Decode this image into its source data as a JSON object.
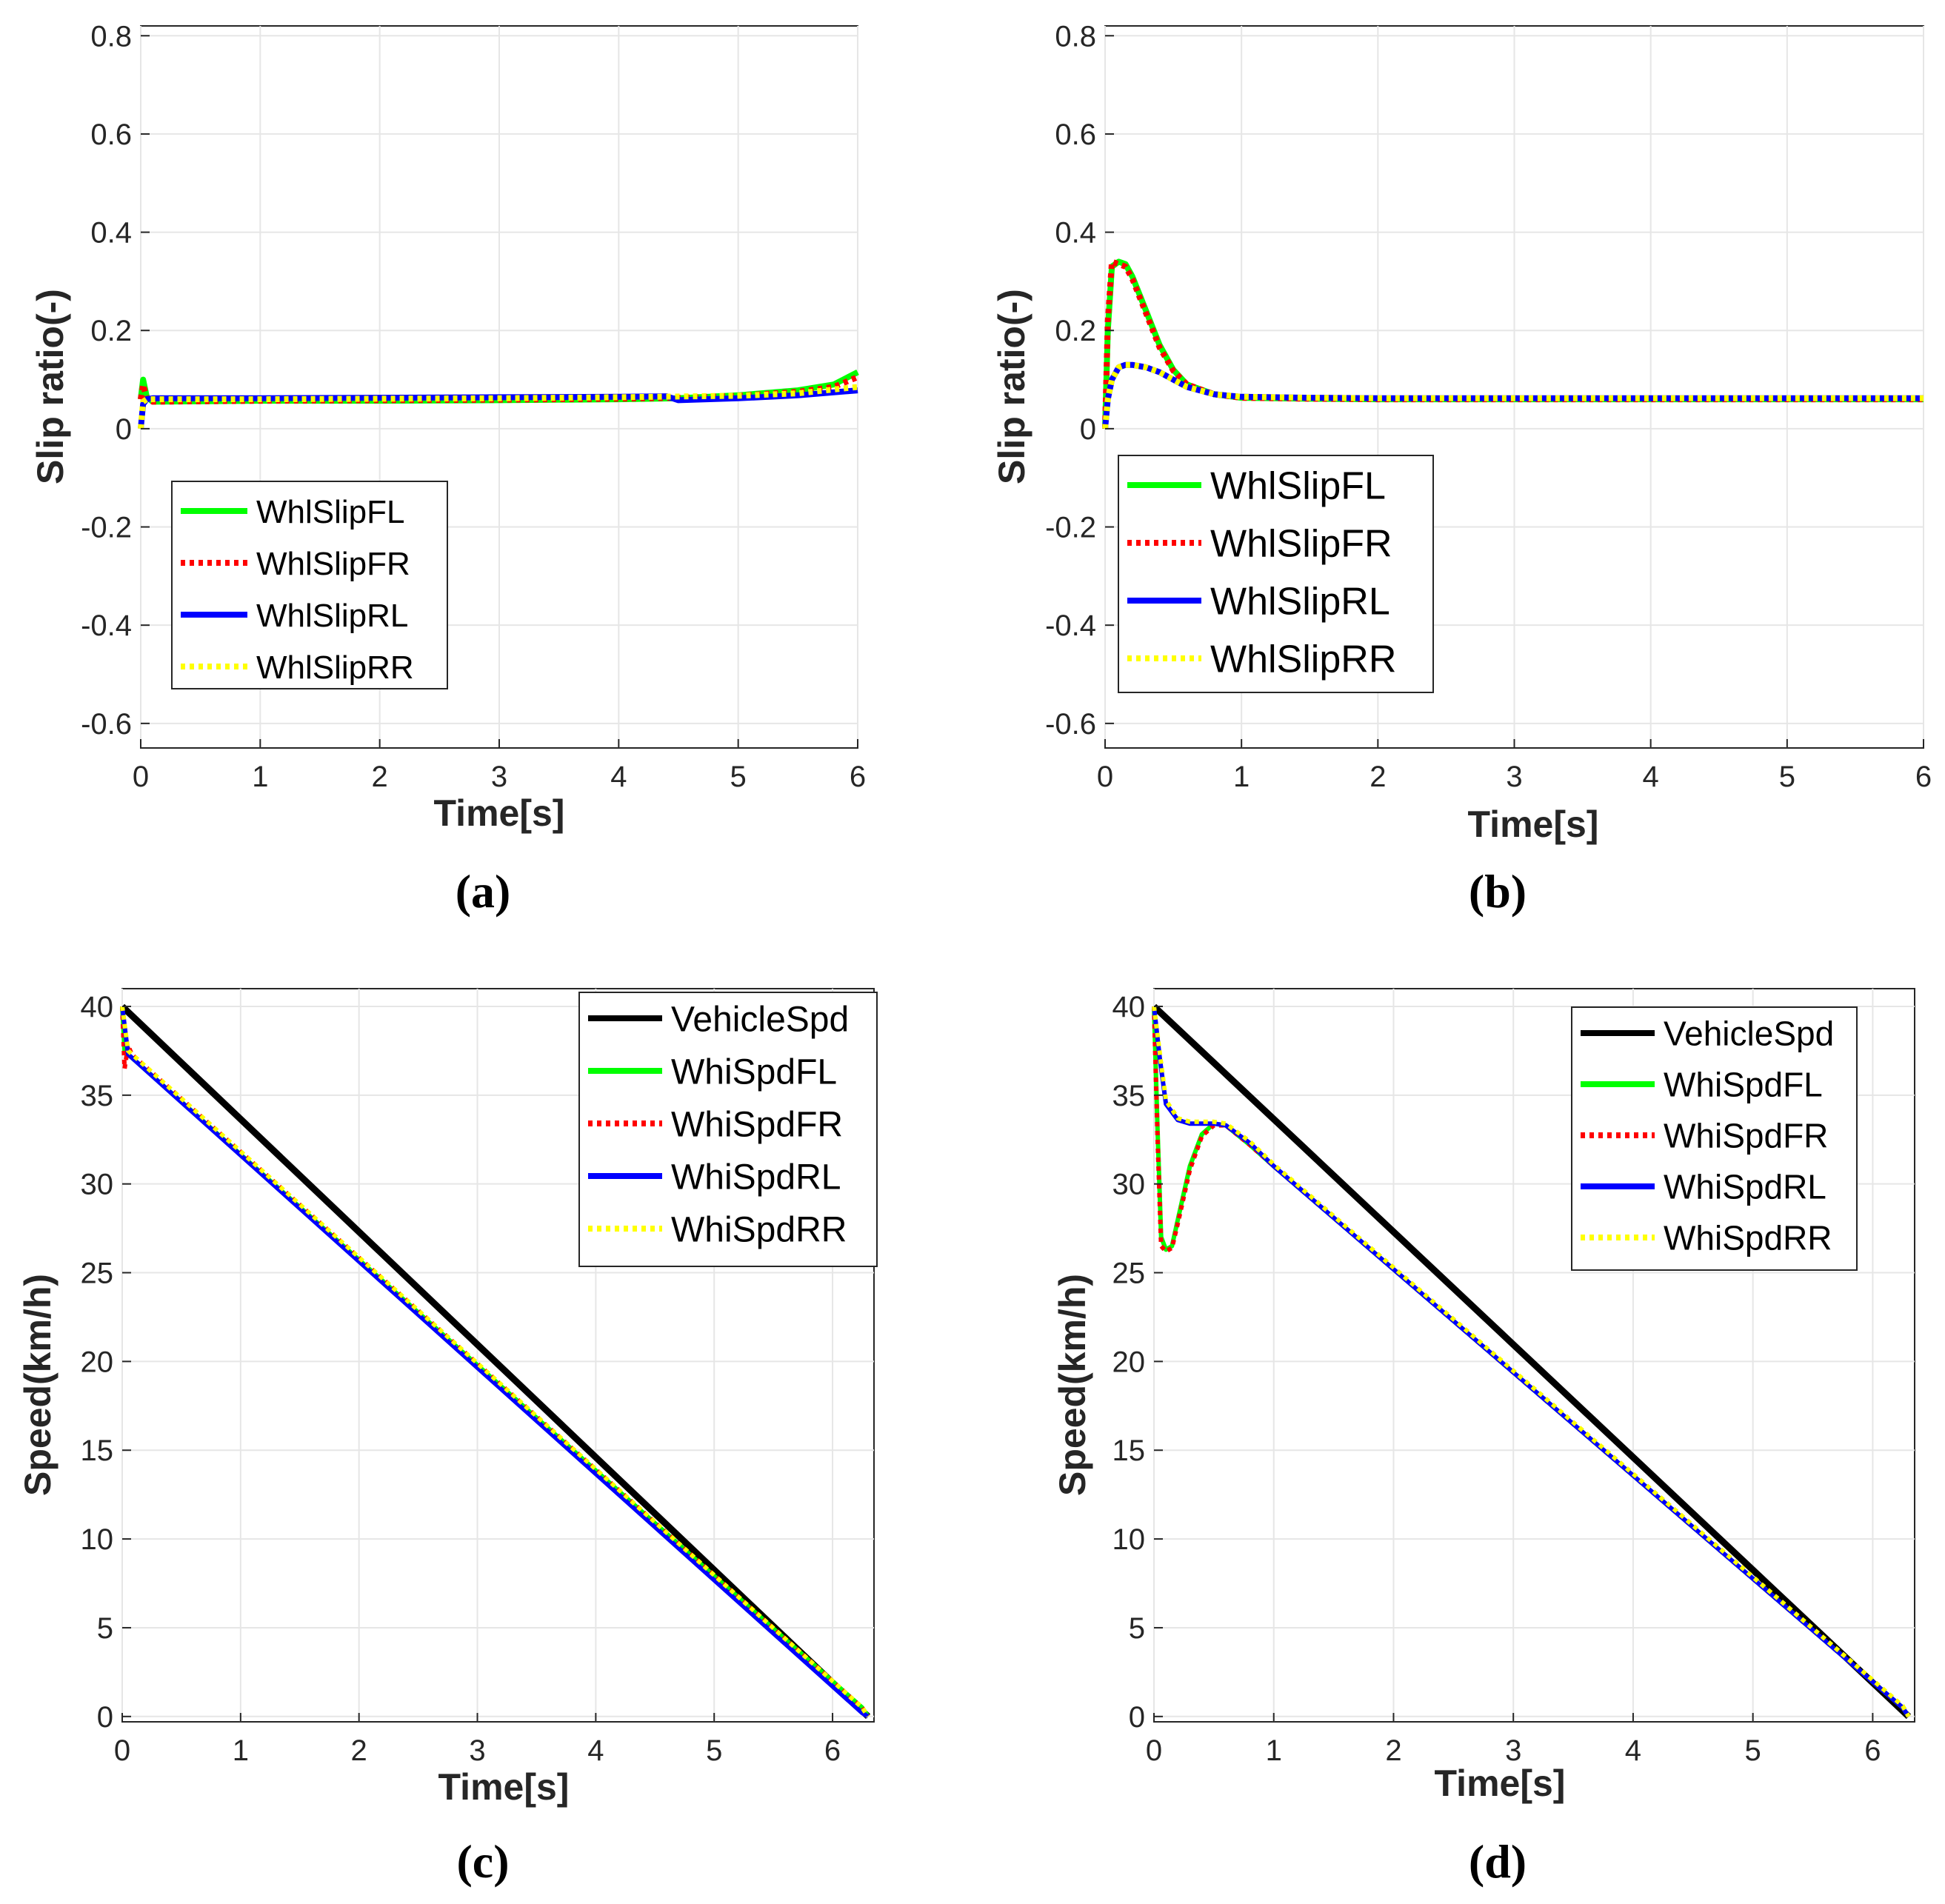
{
  "chart_data": [
    {
      "id": "a",
      "type": "line",
      "panel_label": "(a)",
      "xlabel": "Time[s]",
      "ylabel": "Slip ratio(-)",
      "xlim": [
        0,
        6
      ],
      "ylim": [
        -0.65,
        0.82
      ],
      "xticks": [
        0,
        1,
        2,
        3,
        4,
        5,
        6
      ],
      "xtick_labels": [
        "0",
        "1",
        "2",
        "3",
        "4",
        "5",
        "6"
      ],
      "yticks": [
        0.8,
        0.6,
        0.4,
        0.2,
        0,
        -0.2,
        -0.4,
        -0.6
      ],
      "ytick_labels": [
        "0.8",
        "0.6",
        "0.4",
        "0.2",
        "0",
        "-0.2",
        "-0.4",
        "-0.6"
      ],
      "grid": true,
      "legend_position": "left-middle",
      "series": [
        {
          "name": "WhlSlipFL",
          "color": "#00ff00",
          "style": "solid",
          "x": [
            0,
            0.02,
            0.05,
            0.1,
            1,
            2,
            3,
            4,
            4.5,
            5,
            5.5,
            5.8,
            6
          ],
          "y": [
            0.06,
            0.1,
            0.065,
            0.055,
            0.057,
            0.057,
            0.058,
            0.06,
            0.062,
            0.068,
            0.078,
            0.09,
            0.115
          ]
        },
        {
          "name": "WhlSlipFR",
          "color": "#ff0000",
          "style": "dotted",
          "x": [
            0,
            0.02,
            0.05,
            0.1,
            1,
            2,
            3,
            4,
            4.5,
            5,
            5.5,
            5.8,
            6
          ],
          "y": [
            0.06,
            0.09,
            0.06,
            0.055,
            0.057,
            0.058,
            0.059,
            0.061,
            0.063,
            0.067,
            0.075,
            0.085,
            0.105
          ]
        },
        {
          "name": "WhlSlipRL",
          "color": "#0000ff",
          "style": "solid",
          "x": [
            0,
            0.02,
            0.05,
            0.1,
            1,
            2,
            3,
            4,
            4.4,
            4.5,
            5,
            5.5,
            6
          ],
          "y": [
            0,
            0.05,
            0.06,
            0.062,
            0.062,
            0.063,
            0.064,
            0.065,
            0.066,
            0.058,
            0.062,
            0.068,
            0.078
          ]
        },
        {
          "name": "WhlSlipRR",
          "color": "#ffff00",
          "style": "dotted",
          "x": [
            0,
            0.02,
            0.05,
            0.1,
            1,
            2,
            3,
            4,
            5,
            5.5,
            6
          ],
          "y": [
            0.0,
            0.055,
            0.06,
            0.06,
            0.06,
            0.061,
            0.062,
            0.064,
            0.067,
            0.072,
            0.085
          ]
        }
      ]
    },
    {
      "id": "b",
      "type": "line",
      "panel_label": "(b)",
      "xlabel": "Time[s]",
      "ylabel": "Slip ratio(-)",
      "xlim": [
        0,
        6
      ],
      "ylim": [
        -0.65,
        0.82
      ],
      "xticks": [
        0,
        1,
        2,
        3,
        4,
        5,
        6
      ],
      "xtick_labels": [
        "0",
        "1",
        "2",
        "3",
        "4",
        "5",
        "6"
      ],
      "yticks": [
        0.8,
        0.6,
        0.4,
        0.2,
        0,
        -0.2,
        -0.4,
        -0.6
      ],
      "ytick_labels": [
        "0.8",
        "0.6",
        "0.4",
        "0.2",
        "0",
        "-0.2",
        "-0.4",
        "-0.6"
      ],
      "grid": true,
      "legend_position": "left-middle",
      "series": [
        {
          "name": "WhlSlipFL",
          "color": "#00ff00",
          "style": "solid",
          "x": [
            0,
            0.02,
            0.05,
            0.1,
            0.15,
            0.2,
            0.3,
            0.4,
            0.5,
            0.6,
            0.8,
            1,
            1.5,
            2,
            3,
            4,
            5,
            6
          ],
          "y": [
            0,
            0.2,
            0.33,
            0.34,
            0.335,
            0.31,
            0.24,
            0.17,
            0.12,
            0.09,
            0.07,
            0.063,
            0.061,
            0.06,
            0.06,
            0.06,
            0.06,
            0.06
          ]
        },
        {
          "name": "WhlSlipFR",
          "color": "#ff0000",
          "style": "dotted",
          "x": [
            0,
            0.02,
            0.05,
            0.1,
            0.15,
            0.2,
            0.3,
            0.4,
            0.5,
            0.6,
            0.8,
            1,
            1.5,
            2,
            3,
            4,
            5,
            6
          ],
          "y": [
            0,
            0.22,
            0.34,
            0.335,
            0.33,
            0.305,
            0.235,
            0.165,
            0.118,
            0.09,
            0.07,
            0.063,
            0.061,
            0.06,
            0.06,
            0.06,
            0.06,
            0.06
          ]
        },
        {
          "name": "WhlSlipRL",
          "color": "#0000ff",
          "style": "solid",
          "x": [
            0,
            0.02,
            0.05,
            0.1,
            0.15,
            0.2,
            0.3,
            0.4,
            0.5,
            0.6,
            0.8,
            1,
            1.5,
            2,
            3,
            4,
            5,
            6
          ],
          "y": [
            0,
            0.06,
            0.1,
            0.125,
            0.13,
            0.13,
            0.125,
            0.115,
            0.1,
            0.085,
            0.07,
            0.065,
            0.063,
            0.062,
            0.062,
            0.062,
            0.062,
            0.062
          ]
        },
        {
          "name": "WhlSlipRR",
          "color": "#ffff00",
          "style": "dotted",
          "x": [
            0,
            0.02,
            0.05,
            0.1,
            0.15,
            0.2,
            0.3,
            0.4,
            0.5,
            0.6,
            0.8,
            1,
            1.5,
            2,
            3,
            4,
            5,
            6
          ],
          "y": [
            0,
            0.06,
            0.1,
            0.125,
            0.13,
            0.13,
            0.125,
            0.115,
            0.1,
            0.085,
            0.07,
            0.065,
            0.063,
            0.062,
            0.062,
            0.062,
            0.062,
            0.062
          ]
        }
      ]
    },
    {
      "id": "c",
      "type": "line",
      "panel_label": "(c)",
      "xlabel": "Time[s]",
      "ylabel": "Speed(km/h)",
      "xlim": [
        0,
        6.35
      ],
      "ylim": [
        -0.3,
        41
      ],
      "xticks": [
        0,
        1,
        2,
        3,
        4,
        5,
        6
      ],
      "xtick_labels": [
        "0",
        "1",
        "2",
        "3",
        "4",
        "5",
        "6"
      ],
      "yticks": [
        40,
        35,
        30,
        25,
        20,
        15,
        10,
        5,
        0
      ],
      "ytick_labels": [
        "40",
        "35",
        "30",
        "25",
        "20",
        "15",
        "10",
        "5",
        "0"
      ],
      "grid": true,
      "legend_position": "top-right",
      "series": [
        {
          "name": "VehicleSpd",
          "color": "#000000",
          "style": "solid",
          "x": [
            0,
            6.3
          ],
          "y": [
            40,
            0
          ]
        },
        {
          "name": "WhiSpdFL",
          "color": "#00ff00",
          "style": "solid",
          "x": [
            0,
            0.02,
            0.05,
            6.25,
            6.3
          ],
          "y": [
            40,
            37.5,
            37.3,
            0.5,
            0
          ]
        },
        {
          "name": "WhiSpdFR",
          "color": "#ff0000",
          "style": "dotted",
          "x": [
            0,
            0.02,
            0.05,
            0.08,
            6.25,
            6.3
          ],
          "y": [
            40,
            36.5,
            37.8,
            37.3,
            0.5,
            0
          ]
        },
        {
          "name": "WhiSpdRL",
          "color": "#0000ff",
          "style": "solid",
          "x": [
            0,
            0.05,
            6.25,
            6.3
          ],
          "y": [
            40,
            37.3,
            0.2,
            0
          ]
        },
        {
          "name": "WhiSpdRR",
          "color": "#ffff00",
          "style": "dotted",
          "x": [
            0,
            0.05,
            6.25,
            6.3
          ],
          "y": [
            40,
            37.5,
            0.5,
            0
          ]
        }
      ]
    },
    {
      "id": "d",
      "type": "line",
      "panel_label": "(d)",
      "xlabel": "Time[s]",
      "ylabel": "Speed(km/h)",
      "xlim": [
        0,
        6.35
      ],
      "ylim": [
        -0.3,
        41
      ],
      "xticks": [
        0,
        1,
        2,
        3,
        4,
        5,
        6
      ],
      "xtick_labels": [
        "0",
        "1",
        "2",
        "3",
        "4",
        "5",
        "6"
      ],
      "yticks": [
        40,
        35,
        30,
        25,
        20,
        15,
        10,
        5,
        0
      ],
      "ytick_labels": [
        "40",
        "35",
        "30",
        "25",
        "20",
        "15",
        "10",
        "5",
        "0"
      ],
      "grid": true,
      "legend_position": "top-right",
      "series": [
        {
          "name": "VehicleSpd",
          "color": "#000000",
          "style": "solid",
          "x": [
            0,
            6.3
          ],
          "y": [
            40,
            0
          ]
        },
        {
          "name": "WhiSpdFL",
          "color": "#00ff00",
          "style": "solid",
          "x": [
            0,
            0.03,
            0.06,
            0.1,
            0.15,
            0.2,
            0.3,
            0.4,
            0.5,
            0.6,
            0.8,
            1,
            6.25,
            6.3
          ],
          "y": [
            40,
            33,
            27,
            26.3,
            26.5,
            28,
            31,
            32.8,
            33.4,
            33.3,
            32.2,
            31,
            0.5,
            0
          ]
        },
        {
          "name": "WhiSpdFR",
          "color": "#ff0000",
          "style": "dotted",
          "x": [
            0,
            0.03,
            0.06,
            0.1,
            0.15,
            0.2,
            0.3,
            0.4,
            0.5,
            0.6,
            0.8,
            1,
            6.25,
            6.3
          ],
          "y": [
            40,
            32.5,
            26.5,
            26.2,
            26.4,
            27.8,
            30.8,
            32.7,
            33.3,
            33.3,
            32.2,
            31,
            0.5,
            0
          ]
        },
        {
          "name": "WhiSpdRL",
          "color": "#0000ff",
          "style": "solid",
          "x": [
            0,
            0.05,
            0.1,
            0.2,
            0.3,
            0.5,
            0.6,
            0.8,
            1,
            6.25,
            6.3
          ],
          "y": [
            40,
            37,
            34.5,
            33.6,
            33.4,
            33.4,
            33.3,
            32.3,
            31,
            0.5,
            0
          ]
        },
        {
          "name": "WhiSpdRR",
          "color": "#ffff00",
          "style": "dotted",
          "x": [
            0,
            0.05,
            0.1,
            0.2,
            0.3,
            0.5,
            0.6,
            0.8,
            1,
            6.25,
            6.3
          ],
          "y": [
            40,
            37.3,
            34.7,
            33.7,
            33.5,
            33.5,
            33.4,
            32.4,
            31.1,
            0.6,
            0
          ]
        }
      ]
    }
  ]
}
